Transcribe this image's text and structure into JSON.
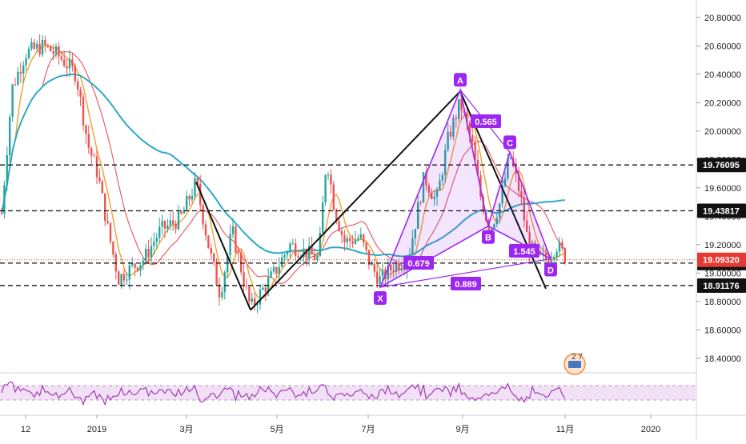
{
  "chart_data": {
    "type": "candlestick",
    "symbol_badge_text": "2 7",
    "price_axis": {
      "ylim": [
        18.32,
        20.9
      ],
      "ticks": [
        20.8,
        20.6,
        20.4,
        20.2,
        20.0,
        19.8,
        19.6,
        19.4,
        19.2,
        19.0,
        18.8,
        18.6,
        18.4
      ],
      "tick_labels": [
        "20.80000",
        "20.60000",
        "20.40000",
        "20.20000",
        "20.00000",
        "19.80000",
        "19.60000",
        "19.40000",
        "19.20000",
        "19.00000",
        "18.80000",
        "18.60000",
        "18.40000"
      ]
    },
    "time_axis": {
      "labels": [
        "12",
        "2019",
        "3月",
        "5月",
        "7月",
        "9月",
        "11月",
        "2020"
      ]
    },
    "price_lines": [
      {
        "value": 19.76095,
        "label": "19.76095",
        "style": "dashed"
      },
      {
        "value": 19.43817,
        "label": "19.43817",
        "style": "dashed"
      },
      {
        "value": 19.06997,
        "label": "19.06997",
        "style": "dashed"
      },
      {
        "value": 18.91176,
        "label": "18.91176",
        "style": "dashed"
      }
    ],
    "last_price": {
      "value": 19.0932,
      "label": "19.09320",
      "color": "#e53935"
    },
    "harmonic_pattern": {
      "points": [
        {
          "label": "X",
          "value": 18.9
        },
        {
          "label": "A",
          "value": 20.29
        },
        {
          "label": "B",
          "value": 19.33
        },
        {
          "label": "C",
          "value": 19.85
        },
        {
          "label": "D",
          "value": 19.1
        }
      ],
      "ratios": [
        {
          "text": "0.679"
        },
        {
          "text": "0.565"
        },
        {
          "text": "1.545"
        },
        {
          "text": "0.889"
        }
      ],
      "color": "#9c27f0"
    },
    "trendlines": [
      {
        "from": 19.64,
        "to": 18.74
      },
      {
        "from": 18.74,
        "to": 20.28
      },
      {
        "from": 20.28,
        "to": 18.89
      }
    ],
    "moving_averages": [
      {
        "color": "#f0a030"
      },
      {
        "color": "#e8606a"
      },
      {
        "color": "#2ea8c8"
      }
    ],
    "rsi": {
      "color": "#a040b0",
      "band_fill": "#f1e0f6"
    },
    "colors": {
      "up": "#26a69a",
      "down": "#ef5350",
      "pattern": "#9c27f0",
      "lines": "#111111"
    }
  }
}
